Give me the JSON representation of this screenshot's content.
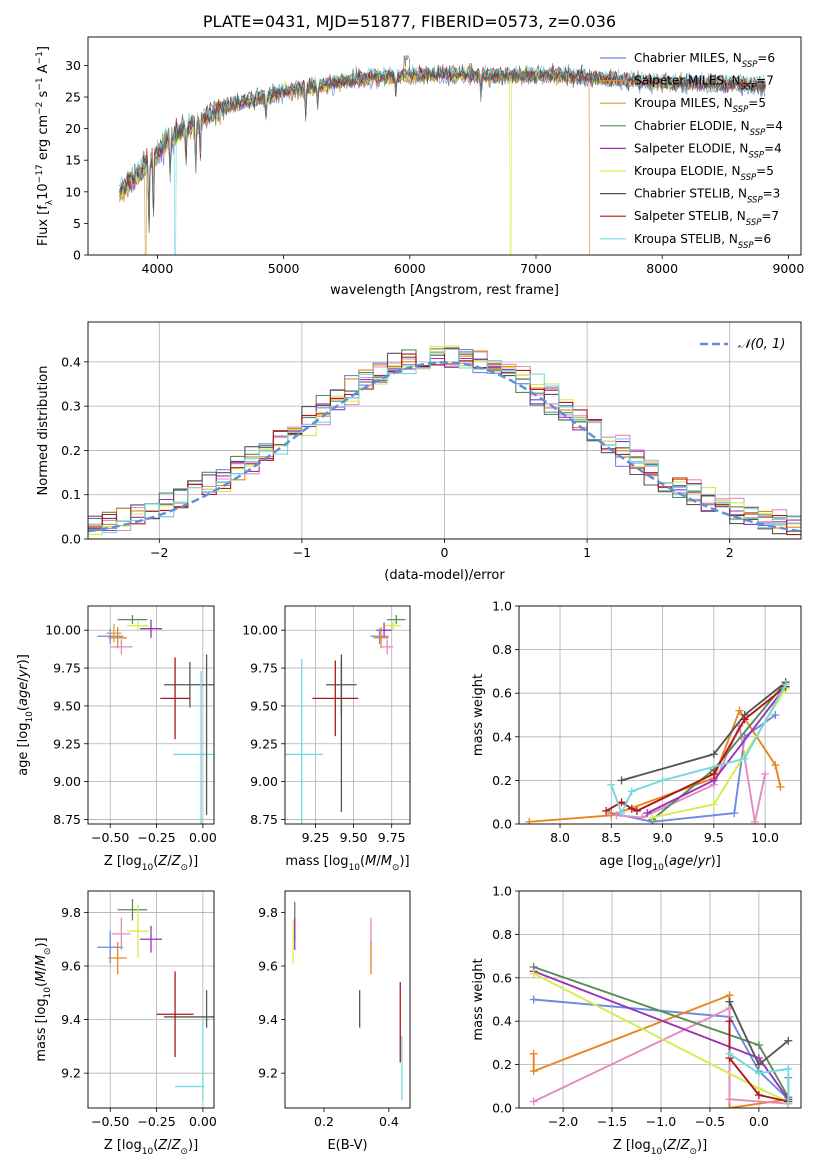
{
  "figure_title": "PLATE=0431, MJD=51877, FIBERID=0573, z=0.036",
  "colors": {
    "Chabrier MILES": "#6b8ae0",
    "Salpeter MILES": "#e7861f",
    "Kroupa MILES": "#d9a040",
    "Chabrier ELODIE": "#5a8a5a",
    "Salpeter ELODIE": "#9a33b8",
    "Kroupa ELODIE": "#d6ec4b",
    "Chabrier STELIB": "#555555",
    "Salpeter STELIB": "#b01818",
    "Kroupa STELIB": "#74d8df",
    "pink": "#e58ac0",
    "normal": "#5b8fd6"
  },
  "chart_data": [
    {
      "id": "spectrum",
      "type": "line",
      "xlabel": "wavelength [Angstrom, rest frame]",
      "ylabel": "Flux [f_λ10^-17 erg cm^-2 s^-1 A^-1]",
      "xlim": [
        3450,
        9100
      ],
      "ylim": [
        0,
        34.5
      ],
      "xticks": [
        4000,
        5000,
        6000,
        7000,
        8000,
        9000
      ],
      "yticks": [
        0,
        5,
        10,
        15,
        20,
        25,
        30
      ],
      "grid": false,
      "legend_position": "top-right",
      "legend": [
        {
          "label": "Chabrier MILES, N_SSP=6",
          "base": "Chabrier MILES, N",
          "sub": "SSP",
          "tail": "=6",
          "color": "#6b8ae0"
        },
        {
          "label": "Salpeter MILES, N_SSP=7",
          "base": "Salpeter MILES, N",
          "sub": "SSP",
          "tail": "=7",
          "color": "#e7861f"
        },
        {
          "label": "Kroupa MILES, N_SSP=5",
          "base": "Kroupa MILES, N",
          "sub": "SSP",
          "tail": "=5",
          "color": "#d9a040"
        },
        {
          "label": "Chabrier ELODIE, N_SSP=4",
          "base": "Chabrier ELODIE, N",
          "sub": "SSP",
          "tail": "=4",
          "color": "#5a8a5a"
        },
        {
          "label": "Salpeter ELODIE, N_SSP=4",
          "base": "Salpeter ELODIE, N",
          "sub": "SSP",
          "tail": "=4",
          "color": "#9a33b8"
        },
        {
          "label": "Kroupa ELODIE, N_SSP=5",
          "base": "Kroupa ELODIE, N",
          "sub": "SSP",
          "tail": "=5",
          "color": "#d6ec4b"
        },
        {
          "label": "Chabrier STELIB, N_SSP=3",
          "base": "Chabrier STELIB, N",
          "sub": "SSP",
          "tail": "=3",
          "color": "#555555"
        },
        {
          "label": "Salpeter STELIB, N_SSP=7",
          "base": "Salpeter STELIB, N",
          "sub": "SSP",
          "tail": "=7",
          "color": "#b01818"
        },
        {
          "label": "Kroupa STELIB, N_SSP=6",
          "base": "Kroupa STELIB, N",
          "sub": "SSP",
          "tail": "=6",
          "color": "#74d8df"
        }
      ],
      "continuum": [
        [
          3700,
          10
        ],
        [
          3800,
          12
        ],
        [
          3900,
          14
        ],
        [
          4000,
          16
        ],
        [
          4100,
          18.5
        ],
        [
          4200,
          20
        ],
        [
          4300,
          20.5
        ],
        [
          4400,
          22
        ],
        [
          4500,
          23
        ],
        [
          4600,
          23.8
        ],
        [
          4800,
          24.8
        ],
        [
          5000,
          25.8
        ],
        [
          5200,
          26.5
        ],
        [
          5400,
          27.2
        ],
        [
          5600,
          27.8
        ],
        [
          5800,
          28.3
        ],
        [
          6000,
          28.4
        ],
        [
          6200,
          28.6
        ],
        [
          6500,
          28.5
        ],
        [
          6800,
          28.3
        ],
        [
          7000,
          28.5
        ],
        [
          7300,
          28.3
        ],
        [
          7600,
          27.7
        ],
        [
          7900,
          27.4
        ],
        [
          8200,
          27.2
        ],
        [
          8500,
          27
        ],
        [
          8800,
          26.8
        ]
      ],
      "absorption_lines": [
        [
          3933,
          -10
        ],
        [
          3968,
          -8
        ],
        [
          4101,
          -6
        ],
        [
          4227,
          -5
        ],
        [
          4304,
          -7
        ],
        [
          4340,
          -5
        ],
        [
          4861,
          -4
        ],
        [
          5175,
          -4
        ],
        [
          5270,
          -3
        ],
        [
          5890,
          -3
        ],
        [
          6563,
          -3
        ]
      ],
      "model_drops": [
        {
          "name": "Salpeter MILES",
          "wavelength": 7430
        },
        {
          "name": "Kroupa ELODIE",
          "wavelength": 6800
        },
        {
          "name": "Kroupa MILES",
          "wavelength": 3905
        },
        {
          "name": "Kroupa STELIB",
          "wavelength": 4140
        }
      ]
    },
    {
      "id": "residuals",
      "type": "histogram",
      "xlabel": "(data-model)/error",
      "ylabel": "Normed distribution",
      "xlim": [
        -2.5,
        2.5
      ],
      "ylim": [
        0,
        0.49
      ],
      "xticks": [
        -2,
        -1,
        0,
        1,
        2
      ],
      "yticks": [
        0.0,
        0.1,
        0.2,
        0.3,
        0.4
      ],
      "grid": true,
      "bin_width": 0.1,
      "legend_position": "top-right",
      "normal_curve": {
        "label": "N(0,1)",
        "mean": 0,
        "sigma": 1
      }
    },
    {
      "id": "age_vs_Z",
      "type": "errorbar",
      "xlabel": "Z [log10(Z/Z⊙)]",
      "ylabel": "age  [log10(age/yr)]",
      "xlim": [
        -0.62,
        0.06
      ],
      "ylim": [
        8.72,
        10.16
      ],
      "xticks": [
        -0.5,
        -0.25,
        0.0
      ],
      "yticks": [
        8.75,
        9.0,
        9.25,
        9.5,
        9.75,
        10.0
      ],
      "grid": true,
      "points": [
        {
          "series": "Chabrier MILES",
          "x": -0.5,
          "y": 9.96,
          "xerr": 0.07,
          "yerr": 0.05
        },
        {
          "series": "Salpeter MILES",
          "x": -0.46,
          "y": 9.95,
          "xerr": 0.05,
          "yerr": 0.07
        },
        {
          "series": "pink",
          "x": -0.44,
          "y": 9.89,
          "xerr": 0.06,
          "yerr": 0.05
        },
        {
          "series": "Kroupa MILES",
          "x": -0.48,
          "y": 9.98,
          "xerr": 0.04,
          "yerr": 0.06
        },
        {
          "series": "Chabrier ELODIE",
          "x": -0.38,
          "y": 10.07,
          "xerr": 0.08,
          "yerr": 0.03
        },
        {
          "series": "Kroupa ELODIE",
          "x": -0.35,
          "y": 10.03,
          "xerr": 0.06,
          "yerr": 0.03
        },
        {
          "series": "Salpeter ELODIE",
          "x": -0.28,
          "y": 10.01,
          "xerr": 0.06,
          "yerr": 0.06
        },
        {
          "series": "Chabrier STELIB",
          "x": -0.07,
          "y": 9.64,
          "xerr": 0.14,
          "yerr": 0.15
        },
        {
          "series": "Salpeter STELIB",
          "x": -0.15,
          "y": 9.55,
          "xerr": 0.08,
          "yerr": 0.27
        },
        {
          "series": "Kroupa STELIB",
          "x": -0.01,
          "y": 9.18,
          "xerr": 0.15,
          "yerr": 0.55
        },
        {
          "series": "Chabrier STELIB",
          "x": 0.02,
          "y": 9.31,
          "xerr": 0.0,
          "yerr": 0.53
        }
      ]
    },
    {
      "id": "age_vs_mass",
      "type": "errorbar",
      "xlabel": "mass [log10(M/M⊙)]",
      "ylabel": "",
      "xlim": [
        9.05,
        9.87
      ],
      "ylim": [
        8.72,
        10.16
      ],
      "xticks": [
        9.25,
        9.5,
        9.75
      ],
      "yticks": [
        8.75,
        9.0,
        9.25,
        9.5,
        9.75,
        10.0
      ],
      "grid": true,
      "points": [
        {
          "series": "Chabrier ELODIE",
          "x": 9.78,
          "y": 10.07,
          "xerr": 0.06,
          "yerr": 0.03
        },
        {
          "series": "Kroupa ELODIE",
          "x": 9.76,
          "y": 10.03,
          "xerr": 0.05,
          "yerr": 0.03
        },
        {
          "series": "Salpeter ELODIE",
          "x": 9.7,
          "y": 10.0,
          "xerr": 0.05,
          "yerr": 0.05
        },
        {
          "series": "Chabrier MILES",
          "x": 9.67,
          "y": 9.96,
          "xerr": 0.06,
          "yerr": 0.05
        },
        {
          "series": "Salpeter MILES",
          "x": 9.68,
          "y": 9.95,
          "xerr": 0.05,
          "yerr": 0.07
        },
        {
          "series": "pink",
          "x": 9.72,
          "y": 9.89,
          "xerr": 0.04,
          "yerr": 0.05
        },
        {
          "series": "Chabrier STELIB",
          "x": 9.42,
          "y": 9.64,
          "xerr": 0.1,
          "yerr": 0.2
        },
        {
          "series": "Chabrier STELIB",
          "x": 9.42,
          "y": 9.3,
          "xerr": 0.0,
          "yerr": 0.5
        },
        {
          "series": "Salpeter STELIB",
          "x": 9.38,
          "y": 9.55,
          "xerr": 0.15,
          "yerr": 0.25
        },
        {
          "series": "Kroupa STELIB",
          "x": 9.16,
          "y": 9.18,
          "xerr": 0.14,
          "yerr": 0.63
        }
      ]
    },
    {
      "id": "weights_vs_age",
      "type": "line",
      "xlabel": "age  [log10(age/yr)]",
      "ylabel": "mass weight",
      "xlim": [
        7.6,
        10.35
      ],
      "ylim": [
        0,
        1.0
      ],
      "xticks": [
        8.0,
        8.5,
        9.0,
        9.5,
        10.0
      ],
      "yticks": [
        0.0,
        0.2,
        0.4,
        0.6,
        0.8,
        1.0
      ],
      "grid": true,
      "series": [
        {
          "name": "Chabrier MILES",
          "x": [
            8.5,
            8.9,
            9.7,
            9.8,
            10.1
          ],
          "y": [
            0.05,
            0.01,
            0.05,
            0.4,
            0.5
          ]
        },
        {
          "name": "Salpeter MILES",
          "x": [
            7.7,
            8.5,
            9.5,
            9.75,
            10.1,
            10.15
          ],
          "y": [
            0.01,
            0.04,
            0.21,
            0.52,
            0.27,
            0.17
          ]
        },
        {
          "name": "pink",
          "x": [
            8.55,
            8.8,
            9.5,
            9.75,
            9.9,
            10.0
          ],
          "y": [
            0.04,
            0.03,
            0.18,
            0.45,
            0.01,
            0.23
          ]
        },
        {
          "name": "Chabrier ELODIE",
          "x": [
            8.9,
            9.5,
            10.2
          ],
          "y": [
            0.02,
            0.25,
            0.65
          ]
        },
        {
          "name": "Salpeter ELODIE",
          "x": [
            8.85,
            9.5,
            10.2
          ],
          "y": [
            0.05,
            0.2,
            0.63
          ]
        },
        {
          "name": "Kroupa ELODIE",
          "x": [
            8.9,
            9.5,
            10.2
          ],
          "y": [
            0.03,
            0.09,
            0.62
          ]
        },
        {
          "name": "Chabrier STELIB",
          "x": [
            8.6,
            9.5,
            9.8,
            10.2
          ],
          "y": [
            0.2,
            0.32,
            0.5,
            0.65
          ]
        },
        {
          "name": "Salpeter STELIB",
          "x": [
            8.45,
            8.6,
            8.7,
            8.75,
            9.5,
            9.8,
            10.2
          ],
          "y": [
            0.06,
            0.1,
            0.07,
            0.06,
            0.23,
            0.48,
            0.63
          ]
        },
        {
          "name": "Kroupa STELIB",
          "x": [
            8.5,
            8.6,
            8.7,
            9.0,
            9.8,
            10.2
          ],
          "y": [
            0.18,
            0.05,
            0.15,
            0.2,
            0.3,
            0.64
          ]
        }
      ]
    },
    {
      "id": "mass_vs_Z",
      "type": "errorbar",
      "xlabel": "Z [log10(Z/Z⊙)]",
      "ylabel": "mass [log10(M/M⊙)]",
      "xlim": [
        -0.62,
        0.06
      ],
      "ylim": [
        9.07,
        9.88
      ],
      "xticks": [
        -0.5,
        -0.25,
        0.0
      ],
      "yticks": [
        9.2,
        9.4,
        9.6,
        9.8
      ],
      "grid": true,
      "points": [
        {
          "series": "Chabrier MILES",
          "x": -0.5,
          "y": 9.67,
          "xerr": 0.07,
          "yerr": 0.06
        },
        {
          "series": "Salpeter MILES",
          "x": -0.46,
          "y": 9.63,
          "xerr": 0.05,
          "yerr": 0.06
        },
        {
          "series": "pink",
          "x": -0.44,
          "y": 9.72,
          "xerr": 0.05,
          "yerr": 0.06
        },
        {
          "series": "Chabrier ELODIE",
          "x": -0.38,
          "y": 9.81,
          "xerr": 0.08,
          "yerr": 0.04
        },
        {
          "series": "Kroupa ELODIE",
          "x": -0.35,
          "y": 9.73,
          "xerr": 0.06,
          "yerr": 0.1
        },
        {
          "series": "Salpeter ELODIE",
          "x": -0.28,
          "y": 9.7,
          "xerr": 0.06,
          "yerr": 0.05
        },
        {
          "series": "Chabrier STELIB",
          "x": -0.07,
          "y": 9.41,
          "xerr": 0.14,
          "yerr": 0.0
        },
        {
          "series": "Salpeter STELIB",
          "x": -0.15,
          "y": 9.42,
          "xerr": 0.1,
          "yerr": 0.16
        },
        {
          "series": "Kroupa STELIB",
          "x": -0.07,
          "y": 9.15,
          "xerr": 0.08,
          "yerr": 0.0
        },
        {
          "series": "Chabrier STELIB",
          "x": 0.02,
          "y": 9.44,
          "xerr": 0.0,
          "yerr": 0.07
        },
        {
          "series": "Kroupa STELIB",
          "x": 0.0,
          "y": 9.25,
          "xerr": 0.0,
          "yerr": 0.15
        }
      ]
    },
    {
      "id": "mass_vs_EBV",
      "type": "errorbar",
      "xlabel": "E(B-V)",
      "ylabel": "",
      "xlim": [
        0.08,
        0.465
      ],
      "ylim": [
        9.07,
        9.88
      ],
      "xticks": [
        0.2,
        0.4
      ],
      "yticks": [
        9.2,
        9.4,
        9.6,
        9.8
      ],
      "grid": false,
      "points": [
        {
          "series": "Chabrier ELODIE",
          "x": 0.11,
          "y": 9.77,
          "xerr": 0.0,
          "yerr": 0.07
        },
        {
          "series": "Salpeter ELODIE",
          "x": 0.11,
          "y": 9.72,
          "xerr": 0.0,
          "yerr": 0.06
        },
        {
          "series": "Kroupa ELODIE",
          "x": 0.105,
          "y": 9.69,
          "xerr": 0.0,
          "yerr": 0.08
        },
        {
          "series": "pink",
          "x": 0.345,
          "y": 9.73,
          "xerr": 0.0,
          "yerr": 0.05
        },
        {
          "series": "Salpeter MILES",
          "x": 0.345,
          "y": 9.63,
          "xerr": 0.0,
          "yerr": 0.06
        },
        {
          "series": "Chabrier STELIB",
          "x": 0.31,
          "y": 9.44,
          "xerr": 0.0,
          "yerr": 0.07
        },
        {
          "series": "Salpeter STELIB",
          "x": 0.435,
          "y": 9.39,
          "xerr": 0.0,
          "yerr": 0.15
        },
        {
          "series": "Kroupa STELIB",
          "x": 0.44,
          "y": 9.22,
          "xerr": 0.0,
          "yerr": 0.12
        }
      ]
    },
    {
      "id": "weights_vs_Z",
      "type": "line",
      "xlabel": "Z [log10(Z/Z⊙)]",
      "ylabel": "mass weight",
      "xlim": [
        -2.45,
        0.43
      ],
      "ylim": [
        0,
        1.0
      ],
      "xticks": [
        -2.0,
        -1.5,
        -1.0,
        -0.5,
        0.0
      ],
      "yticks": [
        0.0,
        0.2,
        0.4,
        0.6,
        0.8,
        1.0
      ],
      "grid": true,
      "series": [
        {
          "name": "Chabrier MILES",
          "x": [
            -2.3,
            -0.3,
            0.0,
            0.3,
            0.3
          ],
          "y": [
            0.5,
            0.42,
            0.17,
            0.04,
            0.14
          ]
        },
        {
          "name": "Salpeter MILES",
          "x": [
            -2.3,
            -2.3,
            -0.3,
            -0.3,
            0.3
          ],
          "y": [
            0.25,
            0.17,
            0.52,
            0.0,
            0.04
          ]
        },
        {
          "name": "pink",
          "x": [
            -2.3,
            -0.3,
            -0.3,
            0.3
          ],
          "y": [
            0.03,
            0.46,
            0.04,
            0.02
          ]
        },
        {
          "name": "Chabrier ELODIE",
          "x": [
            -2.3,
            0.0,
            0.3
          ],
          "y": [
            0.65,
            0.29,
            0.05
          ]
        },
        {
          "name": "Salpeter ELODIE",
          "x": [
            -2.3,
            0.0,
            0.3
          ],
          "y": [
            0.63,
            0.23,
            0.04
          ]
        },
        {
          "name": "Kroupa ELODIE",
          "x": [
            -2.3,
            0.0,
            0.3
          ],
          "y": [
            0.62,
            0.09,
            0.03
          ]
        },
        {
          "name": "Chabrier STELIB",
          "x": [
            -0.3,
            0.0,
            0.3
          ],
          "y": [
            0.49,
            0.2,
            0.31
          ]
        },
        {
          "name": "Salpeter STELIB",
          "x": [
            -0.3,
            -0.3,
            0.0,
            0.3
          ],
          "y": [
            0.4,
            0.23,
            0.06,
            0.03
          ]
        },
        {
          "name": "Kroupa STELIB",
          "x": [
            -0.3,
            0.0,
            0.3,
            0.3
          ],
          "y": [
            0.25,
            0.16,
            0.18,
            0.02
          ]
        }
      ]
    }
  ]
}
